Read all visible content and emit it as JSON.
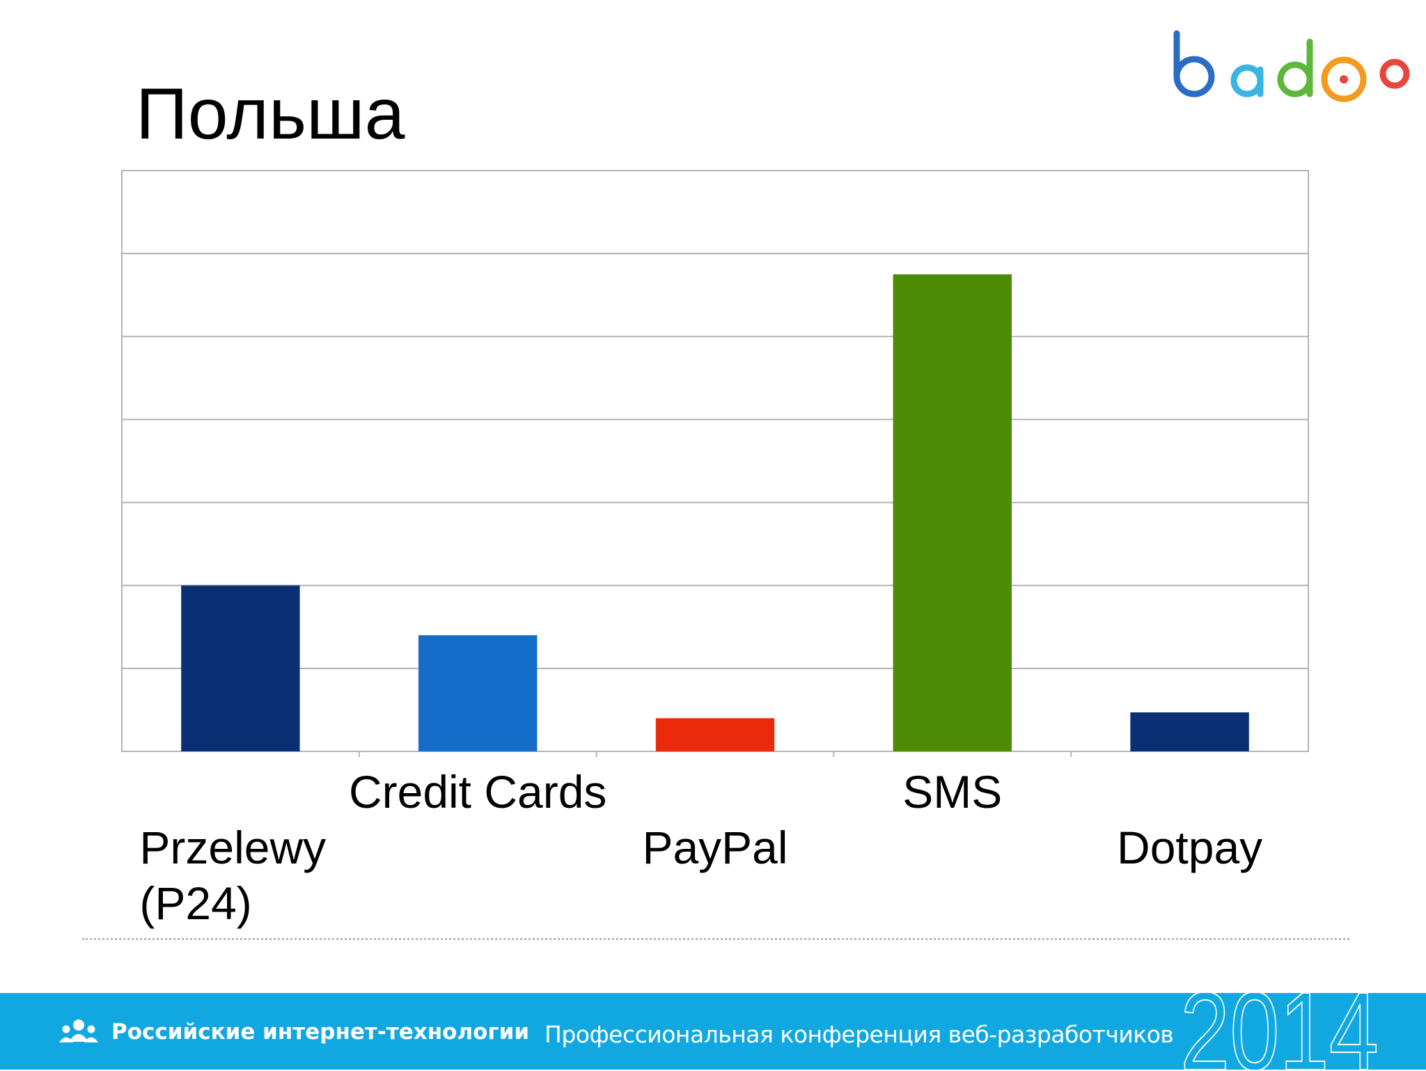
{
  "slide": {
    "title": "Польша"
  },
  "logo": {
    "text": "badoo",
    "icon": "badoo-logo"
  },
  "colors": {
    "footer": "#11a8e2",
    "grid": "#b3b3b3",
    "axis": "#b3b3b3"
  },
  "chart_data": {
    "type": "bar",
    "categories": [
      "Przelewy (P24)",
      "Credit Cards",
      "PayPal",
      "SMS",
      "Dotpay"
    ],
    "category_lines": [
      [
        "Przelewy",
        "(P24)"
      ],
      [
        "Credit Cards"
      ],
      [
        "PayPal"
      ],
      [
        "SMS"
      ],
      [
        "Dotpay"
      ]
    ],
    "label_rows": [
      1,
      0,
      1,
      0,
      1
    ],
    "values": [
      2.0,
      1.4,
      0.4,
      5.75,
      0.47
    ],
    "colors": [
      "#0a2f74",
      "#146dc8",
      "#ea2a0b",
      "#4e8c05",
      "#0a2f74"
    ],
    "ylim": [
      0,
      7
    ],
    "grid": true,
    "y_tick_labels": false,
    "legend": false,
    "title": "",
    "xlabel": "",
    "ylabel": ""
  },
  "footer": {
    "org": "Российские интернет-технологии",
    "conference": "Профессиональная конференция веб-разработчиков",
    "year": "2014",
    "icon": "people-icon"
  }
}
